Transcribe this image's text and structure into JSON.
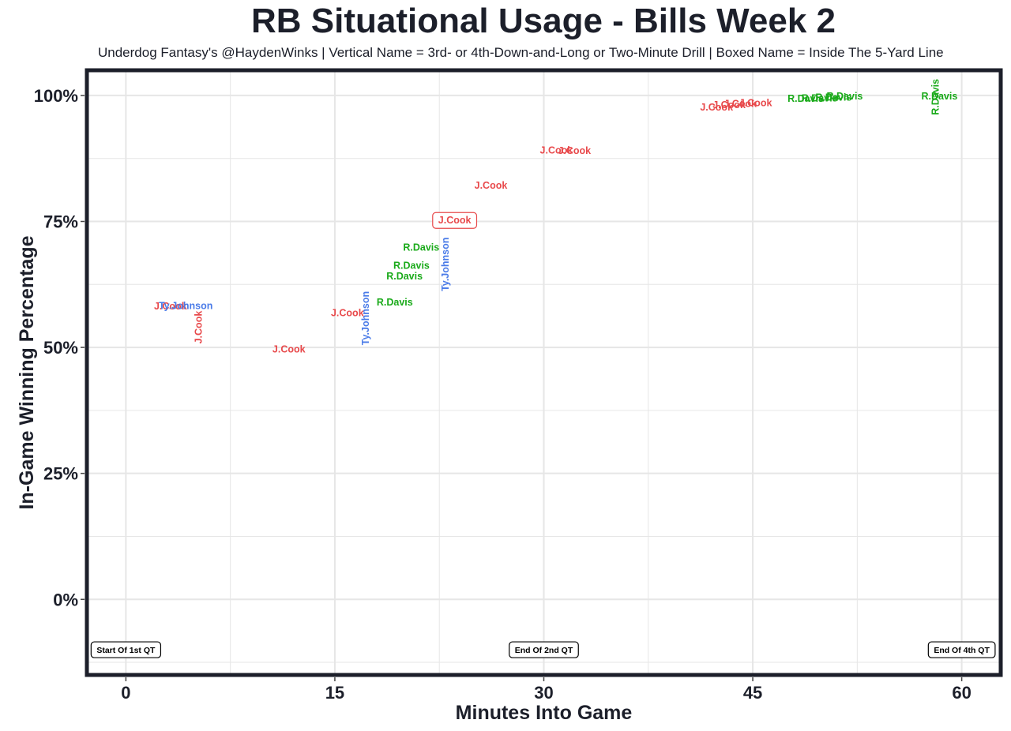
{
  "chart_data": {
    "type": "scatter",
    "title": "RB Situational Usage - Bills Week 2",
    "subtitle": "Underdog Fantasy's @HaydenWinks | Vertical Name = 3rd- or 4th-Down-and-Long or Two-Minute Drill | Boxed Name = Inside The 5-Yard Line",
    "xlabel": "Minutes Into Game",
    "ylabel": "In-Game Winning Percentage",
    "xlim": [
      -2.8,
      62.8
    ],
    "ylim": [
      -15,
      105
    ],
    "x_ticks": [
      0,
      15,
      30,
      45,
      60
    ],
    "x_tick_labels": [
      "0",
      "15",
      "30",
      "45",
      "60"
    ],
    "y_ticks": [
      0,
      25,
      50,
      75,
      100
    ],
    "y_tick_labels": [
      "0%",
      "25%",
      "50%",
      "75%",
      "100%"
    ],
    "grid": true,
    "colors": {
      "J.Cook": "#e8494b",
      "R.Davis": "#1aaa1a",
      "Ty.Johnson": "#4a7be8",
      "frame": "#1c1f2a"
    },
    "quarter_markers": [
      {
        "x": 0,
        "y": -10,
        "label": "Start Of 1st QT"
      },
      {
        "x": 30,
        "y": -10,
        "label": "End Of 2nd QT"
      },
      {
        "x": 60,
        "y": -10,
        "label": "End Of 4th QT"
      }
    ],
    "points": [
      {
        "name": "J.Cook",
        "x": 3.2,
        "y": 58.2,
        "vertical": false,
        "boxed": false
      },
      {
        "name": "Ty.Johnson",
        "x": 4.3,
        "y": 58.3,
        "vertical": false,
        "boxed": false
      },
      {
        "name": "J.Cook",
        "x": 5.2,
        "y": 54.0,
        "vertical": true,
        "boxed": false
      },
      {
        "name": "J.Cook",
        "x": 11.7,
        "y": 49.7,
        "vertical": false,
        "boxed": false
      },
      {
        "name": "J.Cook",
        "x": 15.9,
        "y": 56.9,
        "vertical": false,
        "boxed": false
      },
      {
        "name": "Ty.Johnson",
        "x": 17.2,
        "y": 55.8,
        "vertical": true,
        "boxed": false
      },
      {
        "name": "R.Davis",
        "x": 19.3,
        "y": 59.0,
        "vertical": false,
        "boxed": false
      },
      {
        "name": "R.Davis",
        "x": 20.0,
        "y": 64.2,
        "vertical": false,
        "boxed": false
      },
      {
        "name": "R.Davis",
        "x": 20.5,
        "y": 66.3,
        "vertical": false,
        "boxed": false
      },
      {
        "name": "R.Davis",
        "x": 21.2,
        "y": 69.9,
        "vertical": false,
        "boxed": false
      },
      {
        "name": "Ty.Johnson",
        "x": 22.9,
        "y": 66.5,
        "vertical": true,
        "boxed": false
      },
      {
        "name": "J.Cook",
        "x": 23.6,
        "y": 75.2,
        "vertical": false,
        "boxed": true
      },
      {
        "name": "J.Cook",
        "x": 26.2,
        "y": 82.2,
        "vertical": false,
        "boxed": false
      },
      {
        "name": "J.Cook",
        "x": 30.9,
        "y": 89.2,
        "vertical": false,
        "boxed": false
      },
      {
        "name": "J.Cook",
        "x": 32.2,
        "y": 89.1,
        "vertical": false,
        "boxed": false
      },
      {
        "name": "J.Cook",
        "x": 42.4,
        "y": 97.7,
        "vertical": false,
        "boxed": false
      },
      {
        "name": "J.Cook",
        "x": 43.3,
        "y": 98.2,
        "vertical": false,
        "boxed": false
      },
      {
        "name": "J.Cook",
        "x": 44.1,
        "y": 98.4,
        "vertical": false,
        "boxed": false
      },
      {
        "name": "J.Cook",
        "x": 45.2,
        "y": 98.6,
        "vertical": false,
        "boxed": false
      },
      {
        "name": "R.Davis",
        "x": 48.8,
        "y": 99.4,
        "vertical": false,
        "boxed": false
      },
      {
        "name": "R.Davis",
        "x": 49.8,
        "y": 99.5,
        "vertical": false,
        "boxed": false
      },
      {
        "name": "R.Davis",
        "x": 50.8,
        "y": 99.7,
        "vertical": false,
        "boxed": false
      },
      {
        "name": "R.Davis",
        "x": 51.6,
        "y": 99.9,
        "vertical": false,
        "boxed": false
      },
      {
        "name": "R.Davis",
        "x": 58.4,
        "y": 99.9,
        "vertical": false,
        "boxed": false
      },
      {
        "name": "R.Davis",
        "x": 58.1,
        "y": 99.7,
        "vertical": true,
        "boxed": false
      }
    ]
  }
}
